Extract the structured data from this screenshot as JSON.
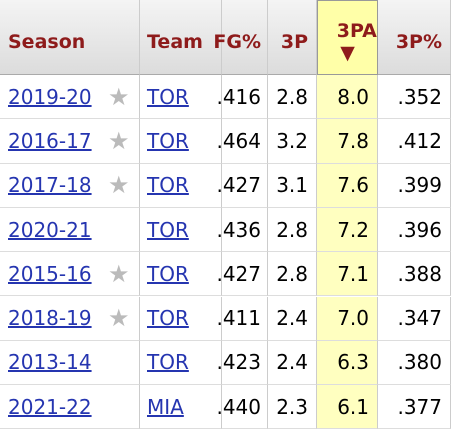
{
  "table": {
    "header": [
      "Season",
      "Team",
      "FG%",
      "3P",
      "3PA",
      "3P%"
    ],
    "rows": [
      {
        "season": "2019-20",
        "star": true,
        "team": "TOR",
        "cells": [
          ".416",
          "2.8",
          "8.0",
          ".352"
        ]
      },
      {
        "season": "2016-17",
        "star": true,
        "team": "TOR",
        "cells": [
          ".464",
          "3.2",
          "7.8",
          ".412"
        ]
      },
      {
        "season": "2017-18",
        "star": true,
        "team": "TOR",
        "cells": [
          ".427",
          "3.1",
          "7.6",
          ".399"
        ]
      },
      {
        "season": "2020-21",
        "star": false,
        "team": "TOR",
        "cells": [
          ".436",
          "2.8",
          "7.2",
          ".396"
        ]
      },
      {
        "season": "2015-16",
        "star": true,
        "team": "TOR",
        "cells": [
          ".427",
          "2.8",
          "7.1",
          ".388"
        ]
      },
      {
        "season": "2018-19",
        "star": true,
        "team": "TOR",
        "cells": [
          ".411",
          "2.4",
          "7.0",
          ".347"
        ]
      },
      {
        "season": "2013-14",
        "star": false,
        "team": "TOR",
        "cells": [
          ".423",
          "2.4",
          "6.3",
          ".380"
        ]
      },
      {
        "season": "2021-22",
        "star": false,
        "team": "MIA",
        "cells": [
          ".440",
          "2.3",
          "6.1",
          ".377"
        ]
      }
    ]
  }
}
